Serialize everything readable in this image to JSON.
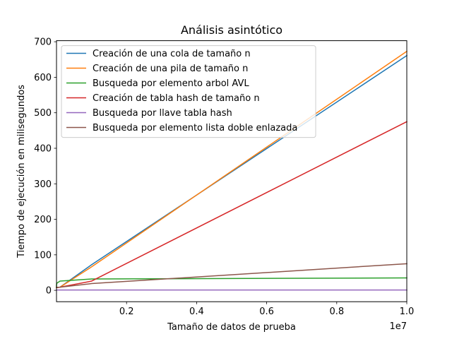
{
  "chart_data": {
    "type": "line",
    "title": "Análisis asintótico",
    "xlabel": "Tamaño de datos de prueba",
    "ylabel": "Tiempo de ejecución en milisegundos",
    "x_offset_label": "1e7",
    "x_tick_labels": [
      "0.2",
      "0.4",
      "0.6",
      "0.8",
      "1.0"
    ],
    "y_tick_labels": [
      "0",
      "100",
      "200",
      "300",
      "400",
      "500",
      "600",
      "700"
    ],
    "x_ticks": [
      2000000,
      4000000,
      6000000,
      8000000,
      10000000
    ],
    "y_ticks": [
      0,
      100,
      200,
      300,
      400,
      500,
      600,
      700
    ],
    "xlim": [
      0,
      10000000
    ],
    "ylim": [
      -32,
      703
    ],
    "grid": false,
    "legend_position": "upper-left",
    "series": [
      {
        "name": "Creación de una cola de tamaño n",
        "color": "#1f77b4",
        "x": [
          10,
          100,
          1000,
          10000,
          100000,
          1000000,
          10000000
        ],
        "y": [
          8,
          8,
          8,
          8,
          9,
          72,
          661
        ]
      },
      {
        "name": "Creación de una pila de tamaño n",
        "color": "#ff7f0e",
        "x": [
          10,
          100,
          1000,
          10000,
          100000,
          1000000,
          10000000
        ],
        "y": [
          8,
          8,
          8,
          8,
          9,
          66,
          673
        ]
      },
      {
        "name": "Busqueda por elemento arbol AVL",
        "color": "#2ca02c",
        "x": [
          10,
          100,
          1000,
          10000,
          100000,
          1000000,
          10000000
        ],
        "y": [
          9,
          12,
          16,
          20,
          26,
          32,
          35
        ]
      },
      {
        "name": "Creación de tabla hash de tamaño n",
        "color": "#d62728",
        "x": [
          10,
          100,
          1000,
          10000,
          100000,
          1000000,
          10000000
        ],
        "y": [
          8,
          8,
          8,
          8,
          9,
          26,
          475
        ]
      },
      {
        "name": "Busqueda por llave tabla hash",
        "color": "#9467bd",
        "x": [
          10,
          100,
          1000,
          10000,
          100000,
          1000000,
          10000000
        ],
        "y": [
          1,
          1,
          1,
          1,
          1,
          1,
          1
        ]
      },
      {
        "name": "Busqueda por elemento lista doble enlazada",
        "color": "#8c564b",
        "x": [
          10,
          100,
          1000,
          10000,
          100000,
          1000000,
          10000000
        ],
        "y": [
          8,
          8,
          8,
          8,
          9,
          19,
          75
        ]
      }
    ]
  }
}
